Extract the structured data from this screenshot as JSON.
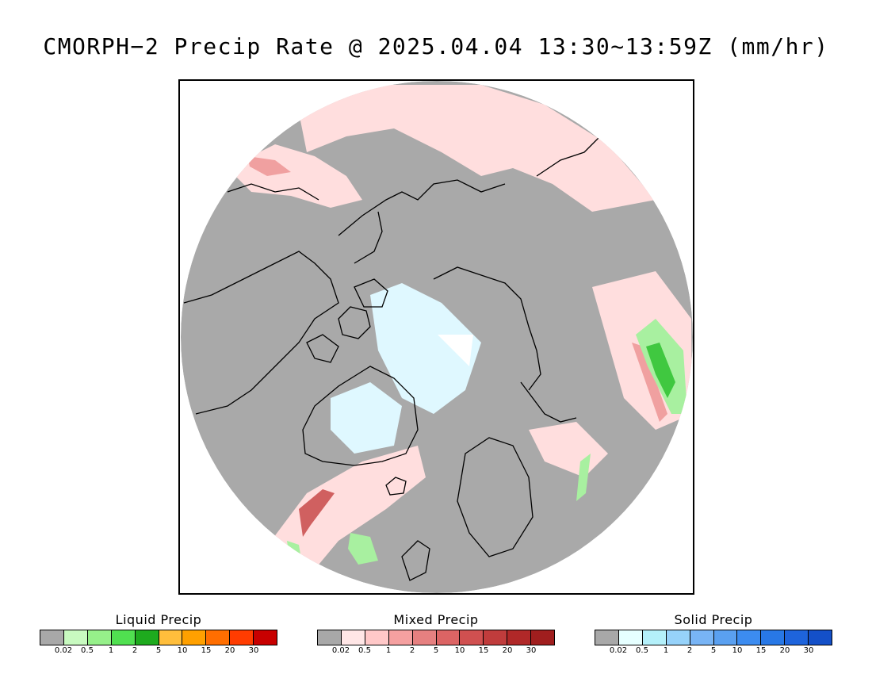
{
  "title": "CMORPH−2 Precip Rate @ 2025.04.04 13:30~13:59Z (mm/hr)",
  "map": {
    "projection": "polar-stereographic-north",
    "colors": {
      "no_precip": "#a9a9a9",
      "mixed_light": "#ffdede",
      "mixed_mid": "#f0a0a0",
      "mixed_heavy": "#d06060",
      "solid_light": "#dff8ff",
      "liquid_light": "#a8f0a0",
      "liquid_mid": "#40c840",
      "coastline": "#000000"
    }
  },
  "legends": [
    {
      "title": "Liquid Precip",
      "ticks": [
        "0.02",
        "0.5",
        "1",
        "2",
        "5",
        "10",
        "15",
        "20",
        "30"
      ],
      "colors": [
        "#a8a8a8",
        "#c8fac0",
        "#96f08a",
        "#50e050",
        "#1eaa1e",
        "#ffbe3c",
        "#ffa000",
        "#ff6e00",
        "#ff3c00",
        "#c80000"
      ]
    },
    {
      "title": "Mixed Precip",
      "ticks": [
        "0.02",
        "0.5",
        "1",
        "2",
        "5",
        "10",
        "15",
        "20",
        "30"
      ],
      "colors": [
        "#a8a8a8",
        "#ffe6e6",
        "#ffc8c8",
        "#f5a0a0",
        "#e68080",
        "#dc6464",
        "#d05050",
        "#c03c3c",
        "#b02828",
        "#a01e1e"
      ]
    },
    {
      "title": "Solid Precip",
      "ticks": [
        "0.02",
        "0.5",
        "1",
        "2",
        "5",
        "10",
        "15",
        "20",
        "30"
      ],
      "colors": [
        "#a8a8a8",
        "#e6ffff",
        "#b4f0fa",
        "#96d2fa",
        "#78b4f5",
        "#5aa0f0",
        "#3c8cf0",
        "#2878e6",
        "#1e64dc",
        "#1450c8"
      ]
    }
  ]
}
